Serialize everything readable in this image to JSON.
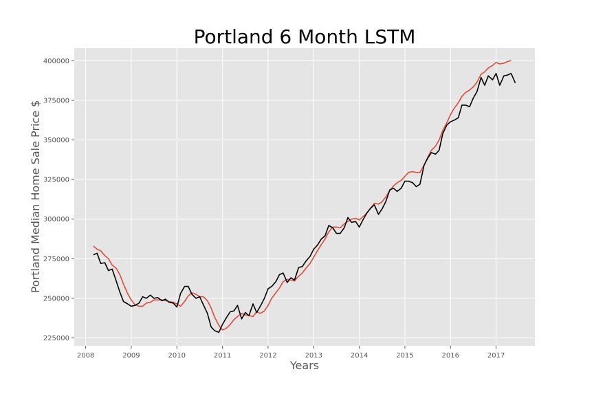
{
  "chart_data": {
    "type": "line",
    "title": "Portland 6 Month LSTM",
    "xlabel": "Years",
    "ylabel": "Portland Median Home Sale Price $",
    "xlim": [
      2007.75,
      2017.85
    ],
    "ylim": [
      220000,
      408000
    ],
    "grid": true,
    "legend": "none",
    "x_ticks": [
      2008,
      2009,
      2010,
      2011,
      2012,
      2013,
      2014,
      2015,
      2016,
      2017
    ],
    "x_tick_labels": [
      "2008",
      "2009",
      "2010",
      "2011",
      "2012",
      "2013",
      "2014",
      "2015",
      "2016",
      "2017"
    ],
    "y_ticks": [
      225000,
      250000,
      275000,
      300000,
      325000,
      350000,
      375000,
      400000
    ],
    "y_tick_labels": [
      "225000",
      "250000",
      "275000",
      "300000",
      "325000",
      "350000",
      "375000",
      "400000"
    ],
    "colors": {
      "background": "#e5e5e5",
      "grid": "#ffffff",
      "series_a": "#e24a33",
      "series_b": "#000000"
    },
    "series": [
      {
        "color": "#e24a33",
        "points": [
          [
            2008.17,
            283000
          ],
          [
            2008.25,
            281000
          ],
          [
            2008.33,
            280000
          ],
          [
            2008.42,
            277000
          ],
          [
            2008.5,
            275000
          ],
          [
            2008.58,
            271000
          ],
          [
            2008.67,
            269000
          ],
          [
            2008.75,
            265000
          ],
          [
            2008.83,
            259000
          ],
          [
            2008.92,
            253000
          ],
          [
            2009.0,
            249000
          ],
          [
            2009.08,
            246000
          ],
          [
            2009.17,
            245000
          ],
          [
            2009.25,
            245000
          ],
          [
            2009.33,
            247000
          ],
          [
            2009.42,
            247500
          ],
          [
            2009.5,
            249000
          ],
          [
            2009.58,
            249000
          ],
          [
            2009.67,
            249000
          ],
          [
            2009.75,
            248500
          ],
          [
            2009.83,
            248000
          ],
          [
            2009.92,
            247500
          ],
          [
            2010.0,
            246500
          ],
          [
            2010.08,
            245000
          ],
          [
            2010.17,
            248000
          ],
          [
            2010.25,
            251500
          ],
          [
            2010.33,
            253500
          ],
          [
            2010.42,
            252500
          ],
          [
            2010.5,
            251000
          ],
          [
            2010.58,
            251000
          ],
          [
            2010.67,
            248500
          ],
          [
            2010.75,
            244000
          ],
          [
            2010.83,
            238000
          ],
          [
            2010.92,
            233000
          ],
          [
            2011.0,
            230000
          ],
          [
            2011.08,
            231000
          ],
          [
            2011.17,
            233500
          ],
          [
            2011.25,
            236500
          ],
          [
            2011.33,
            238500
          ],
          [
            2011.42,
            240500
          ],
          [
            2011.5,
            239500
          ],
          [
            2011.58,
            239000
          ],
          [
            2011.67,
            238500
          ],
          [
            2011.75,
            241500
          ],
          [
            2011.83,
            240500
          ],
          [
            2011.92,
            242000
          ],
          [
            2012.0,
            245500
          ],
          [
            2012.08,
            250000
          ],
          [
            2012.17,
            253500
          ],
          [
            2012.25,
            256500
          ],
          [
            2012.33,
            260500
          ],
          [
            2012.42,
            262000
          ],
          [
            2012.5,
            261500
          ],
          [
            2012.58,
            261000
          ],
          [
            2012.67,
            264000
          ],
          [
            2012.75,
            266000
          ],
          [
            2012.83,
            269000
          ],
          [
            2012.92,
            272000
          ],
          [
            2013.0,
            276000
          ],
          [
            2013.08,
            280000
          ],
          [
            2013.17,
            284000
          ],
          [
            2013.25,
            287500
          ],
          [
            2013.33,
            292000
          ],
          [
            2013.42,
            295000
          ],
          [
            2013.5,
            295000
          ],
          [
            2013.58,
            294500
          ],
          [
            2013.67,
            297000
          ],
          [
            2013.75,
            298500
          ],
          [
            2013.83,
            300000
          ],
          [
            2013.92,
            300500
          ],
          [
            2014.0,
            299500
          ],
          [
            2014.08,
            301500
          ],
          [
            2014.17,
            304000
          ],
          [
            2014.25,
            307000
          ],
          [
            2014.33,
            310000
          ],
          [
            2014.42,
            309500
          ],
          [
            2014.5,
            311000
          ],
          [
            2014.58,
            314000
          ],
          [
            2014.67,
            318000
          ],
          [
            2014.75,
            321000
          ],
          [
            2014.83,
            323000
          ],
          [
            2014.92,
            324500
          ],
          [
            2015.0,
            327000
          ],
          [
            2015.08,
            329500
          ],
          [
            2015.17,
            330000
          ],
          [
            2015.25,
            329500
          ],
          [
            2015.33,
            329500
          ],
          [
            2015.42,
            334000
          ],
          [
            2015.5,
            339000
          ],
          [
            2015.58,
            343500
          ],
          [
            2015.67,
            346000
          ],
          [
            2015.75,
            350000
          ],
          [
            2015.83,
            356000
          ],
          [
            2015.92,
            361000
          ],
          [
            2016.0,
            366000
          ],
          [
            2016.08,
            370000
          ],
          [
            2016.17,
            373500
          ],
          [
            2016.25,
            377500
          ],
          [
            2016.33,
            380000
          ],
          [
            2016.42,
            381500
          ],
          [
            2016.5,
            383500
          ],
          [
            2016.58,
            386500
          ],
          [
            2016.67,
            391500
          ],
          [
            2016.75,
            393000
          ],
          [
            2016.83,
            395500
          ],
          [
            2016.92,
            397000
          ],
          [
            2017.0,
            399000
          ],
          [
            2017.08,
            398000
          ],
          [
            2017.17,
            398500
          ],
          [
            2017.25,
            399500
          ],
          [
            2017.33,
            400200
          ]
        ]
      },
      {
        "color": "#000000",
        "points": [
          [
            2008.17,
            277500
          ],
          [
            2008.25,
            278500
          ],
          [
            2008.33,
            272000
          ],
          [
            2008.42,
            272500
          ],
          [
            2008.5,
            267500
          ],
          [
            2008.58,
            268500
          ],
          [
            2008.67,
            261000
          ],
          [
            2008.75,
            254000
          ],
          [
            2008.83,
            248000
          ],
          [
            2008.92,
            246500
          ],
          [
            2009.0,
            245000
          ],
          [
            2009.08,
            245500
          ],
          [
            2009.17,
            247000
          ],
          [
            2009.25,
            251000
          ],
          [
            2009.33,
            250000
          ],
          [
            2009.42,
            252000
          ],
          [
            2009.5,
            250000
          ],
          [
            2009.58,
            250500
          ],
          [
            2009.67,
            248500
          ],
          [
            2009.75,
            249500
          ],
          [
            2009.83,
            247500
          ],
          [
            2009.92,
            247000
          ],
          [
            2010.0,
            244500
          ],
          [
            2010.08,
            253000
          ],
          [
            2010.17,
            257500
          ],
          [
            2010.25,
            257500
          ],
          [
            2010.33,
            252500
          ],
          [
            2010.42,
            250000
          ],
          [
            2010.5,
            251000
          ],
          [
            2010.58,
            246000
          ],
          [
            2010.67,
            240500
          ],
          [
            2010.75,
            232000
          ],
          [
            2010.83,
            229500
          ],
          [
            2010.92,
            228500
          ],
          [
            2011.0,
            233500
          ],
          [
            2011.08,
            237500
          ],
          [
            2011.17,
            241500
          ],
          [
            2011.25,
            242000
          ],
          [
            2011.33,
            245500
          ],
          [
            2011.42,
            237000
          ],
          [
            2011.5,
            241000
          ],
          [
            2011.58,
            239000
          ],
          [
            2011.67,
            246500
          ],
          [
            2011.75,
            241000
          ],
          [
            2011.83,
            245000
          ],
          [
            2011.92,
            250000
          ],
          [
            2012.0,
            256000
          ],
          [
            2012.08,
            257500
          ],
          [
            2012.17,
            260500
          ],
          [
            2012.25,
            265000
          ],
          [
            2012.33,
            266000
          ],
          [
            2012.42,
            260000
          ],
          [
            2012.5,
            263000
          ],
          [
            2012.58,
            261500
          ],
          [
            2012.67,
            269500
          ],
          [
            2012.75,
            270000
          ],
          [
            2012.83,
            273500
          ],
          [
            2012.92,
            276500
          ],
          [
            2013.0,
            281000
          ],
          [
            2013.08,
            283500
          ],
          [
            2013.17,
            287500
          ],
          [
            2013.25,
            289500
          ],
          [
            2013.33,
            296000
          ],
          [
            2013.42,
            294500
          ],
          [
            2013.5,
            291000
          ],
          [
            2013.58,
            291000
          ],
          [
            2013.67,
            294500
          ],
          [
            2013.75,
            301000
          ],
          [
            2013.83,
            298000
          ],
          [
            2013.92,
            298500
          ],
          [
            2014.0,
            295000
          ],
          [
            2014.08,
            299500
          ],
          [
            2014.17,
            304000
          ],
          [
            2014.25,
            307000
          ],
          [
            2014.33,
            309000
          ],
          [
            2014.42,
            303000
          ],
          [
            2014.5,
            306500
          ],
          [
            2014.58,
            311000
          ],
          [
            2014.67,
            318500
          ],
          [
            2014.75,
            319500
          ],
          [
            2014.83,
            317500
          ],
          [
            2014.92,
            319500
          ],
          [
            2015.0,
            324000
          ],
          [
            2015.08,
            324000
          ],
          [
            2015.17,
            323000
          ],
          [
            2015.25,
            320500
          ],
          [
            2015.33,
            322000
          ],
          [
            2015.42,
            334000
          ],
          [
            2015.5,
            338500
          ],
          [
            2015.58,
            342000
          ],
          [
            2015.67,
            341000
          ],
          [
            2015.75,
            343500
          ],
          [
            2015.83,
            354000
          ],
          [
            2015.92,
            359500
          ],
          [
            2016.0,
            361500
          ],
          [
            2016.08,
            362500
          ],
          [
            2016.17,
            364000
          ],
          [
            2016.25,
            372000
          ],
          [
            2016.33,
            372000
          ],
          [
            2016.42,
            371000
          ],
          [
            2016.5,
            376500
          ],
          [
            2016.58,
            380500
          ],
          [
            2016.67,
            389500
          ],
          [
            2016.75,
            384500
          ],
          [
            2016.83,
            390500
          ],
          [
            2016.92,
            388000
          ],
          [
            2017.0,
            392000
          ],
          [
            2017.08,
            384500
          ],
          [
            2017.17,
            390500
          ],
          [
            2017.25,
            391000
          ],
          [
            2017.33,
            392000
          ],
          [
            2017.42,
            386000
          ]
        ]
      }
    ]
  }
}
